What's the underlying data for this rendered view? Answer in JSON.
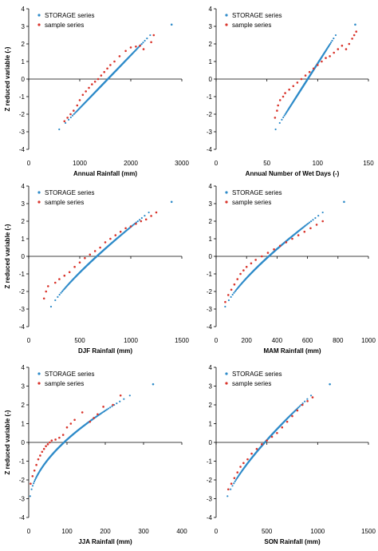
{
  "colors": {
    "storage": "#2e8bc9",
    "sample": "#d9342b"
  },
  "chart_data": [
    {
      "type": "scatter",
      "xlabel": "Annual Rainfall (mm)",
      "ylabel": "Z reduced variable (-)",
      "xlim": [
        0,
        3000
      ],
      "ylim": [
        -4,
        4
      ],
      "xticks": [
        "0",
        "1000",
        "2000",
        "3000"
      ],
      "yticks": [
        "-4",
        "-3",
        "-2",
        "-1",
        "0",
        "1",
        "2",
        "3",
        "4"
      ],
      "legend": [
        "STORAGE series",
        "sample series"
      ],
      "storage": {
        "xmin": 520,
        "xmax": 2800,
        "zmin": -3.1,
        "zmax": 3.1,
        "gamma": 1.0,
        "outlier": [
          2800,
          3.1
        ]
      },
      "sample": [
        [
          700,
          -2.4
        ],
        [
          760,
          -2.2
        ],
        [
          820,
          -2.0
        ],
        [
          880,
          -1.8
        ],
        [
          950,
          -1.5
        ],
        [
          1000,
          -1.2
        ],
        [
          1060,
          -0.9
        ],
        [
          1120,
          -0.7
        ],
        [
          1180,
          -0.5
        ],
        [
          1240,
          -0.3
        ],
        [
          1300,
          -0.15
        ],
        [
          1360,
          0.0
        ],
        [
          1420,
          0.2
        ],
        [
          1480,
          0.4
        ],
        [
          1540,
          0.6
        ],
        [
          1600,
          0.8
        ],
        [
          1680,
          1.0
        ],
        [
          1780,
          1.3
        ],
        [
          1900,
          1.6
        ],
        [
          2000,
          1.8
        ],
        [
          2100,
          1.85
        ],
        [
          2180,
          1.9
        ],
        [
          2250,
          1.7
        ],
        [
          2400,
          2.1
        ],
        [
          2450,
          2.5
        ]
      ]
    },
    {
      "type": "scatter",
      "xlabel": "Annual Number of Wet Days (-)",
      "ylabel": "",
      "xlim": [
        0,
        150
      ],
      "ylim": [
        -4,
        4
      ],
      "xticks": [
        "0",
        "50",
        "100",
        "150"
      ],
      "yticks": [
        "-4",
        "-3",
        "-2",
        "-1",
        "0",
        "1",
        "2",
        "3",
        "4"
      ],
      "legend": [
        "STORAGE series",
        "sample series"
      ],
      "storage": {
        "xmin": 56,
        "xmax": 137,
        "zmin": -3.1,
        "zmax": 3.1,
        "gamma": 1.0,
        "outlier": [
          137,
          3.1
        ]
      },
      "sample": [
        [
          58,
          -2.2
        ],
        [
          60,
          -1.8
        ],
        [
          61,
          -1.5
        ],
        [
          63,
          -1.2
        ],
        [
          66,
          -1.0
        ],
        [
          68,
          -0.8
        ],
        [
          72,
          -0.6
        ],
        [
          76,
          -0.4
        ],
        [
          80,
          -0.2
        ],
        [
          84,
          0.0
        ],
        [
          88,
          0.2
        ],
        [
          92,
          0.4
        ],
        [
          96,
          0.6
        ],
        [
          100,
          0.8
        ],
        [
          104,
          1.0
        ],
        [
          108,
          1.2
        ],
        [
          112,
          1.3
        ],
        [
          116,
          1.5
        ],
        [
          120,
          1.7
        ],
        [
          124,
          1.9
        ],
        [
          128,
          1.7
        ],
        [
          131,
          2.0
        ],
        [
          134,
          2.3
        ],
        [
          136,
          2.5
        ],
        [
          138,
          2.7
        ]
      ]
    },
    {
      "type": "scatter",
      "xlabel": "DJF Rainfall (mm)",
      "ylabel": "Z reduced variable (-)",
      "xlim": [
        0,
        1500
      ],
      "ylim": [
        -4,
        4
      ],
      "xticks": [
        "0",
        "500",
        "1000",
        "1500"
      ],
      "yticks": [
        "-4",
        "-3",
        "-2",
        "-1",
        "0",
        "1",
        "2",
        "3",
        "4"
      ],
      "legend": [
        "STORAGE series",
        "sample series"
      ],
      "storage": {
        "xmin": 200,
        "xmax": 1400,
        "zmin": -3.1,
        "zmax": 3.1,
        "gamma": 0.8,
        "outlier": [
          1400,
          3.1
        ]
      },
      "sample": [
        [
          150,
          -2.4
        ],
        [
          170,
          -2.0
        ],
        [
          190,
          -1.7
        ],
        [
          260,
          -1.5
        ],
        [
          300,
          -1.3
        ],
        [
          350,
          -1.1
        ],
        [
          400,
          -0.9
        ],
        [
          450,
          -0.6
        ],
        [
          500,
          -0.35
        ],
        [
          550,
          -0.1
        ],
        [
          600,
          0.1
        ],
        [
          650,
          0.3
        ],
        [
          700,
          0.5
        ],
        [
          750,
          0.8
        ],
        [
          800,
          1.0
        ],
        [
          850,
          1.2
        ],
        [
          900,
          1.4
        ],
        [
          950,
          1.6
        ],
        [
          1000,
          1.7
        ],
        [
          1050,
          1.85
        ],
        [
          1100,
          2.0
        ],
        [
          1150,
          2.1
        ],
        [
          1200,
          2.3
        ],
        [
          1250,
          2.5
        ]
      ]
    },
    {
      "type": "scatter",
      "xlabel": "MAM Rainfall (mm)",
      "ylabel": "",
      "xlim": [
        0,
        1000
      ],
      "ylim": [
        -4,
        4
      ],
      "xticks": [
        "0",
        "200",
        "400",
        "600",
        "800",
        "1000"
      ],
      "yticks": [
        "-4",
        "-3",
        "-2",
        "-1",
        "0",
        "1",
        "2",
        "3",
        "4"
      ],
      "legend": [
        "STORAGE series",
        "sample series"
      ],
      "storage": {
        "xmin": 50,
        "xmax": 840,
        "zmin": -3.1,
        "zmax": 3.1,
        "gamma": 0.75,
        "outlier": [
          840,
          3.1
        ]
      },
      "sample": [
        [
          60,
          -2.6
        ],
        [
          80,
          -2.2
        ],
        [
          100,
          -1.9
        ],
        [
          120,
          -1.6
        ],
        [
          140,
          -1.3
        ],
        [
          160,
          -1.0
        ],
        [
          180,
          -0.8
        ],
        [
          200,
          -0.6
        ],
        [
          230,
          -0.4
        ],
        [
          260,
          -0.2
        ],
        [
          300,
          0.0
        ],
        [
          340,
          0.2
        ],
        [
          380,
          0.4
        ],
        [
          420,
          0.6
        ],
        [
          460,
          0.8
        ],
        [
          500,
          1.0
        ],
        [
          540,
          1.2
        ],
        [
          580,
          1.4
        ],
        [
          620,
          1.6
        ],
        [
          660,
          1.8
        ],
        [
          700,
          2.0
        ]
      ]
    },
    {
      "type": "scatter",
      "xlabel": "JJA Rainfall (mm)",
      "ylabel": "Z reduced variable (-)",
      "xlim": [
        0,
        400
      ],
      "ylim": [
        -4,
        4
      ],
      "xticks": [
        "0",
        "100",
        "200",
        "300",
        "400"
      ],
      "yticks": [
        "-4",
        "-3",
        "-2",
        "-1",
        "0",
        "1",
        "2",
        "3",
        "4"
      ],
      "legend": [
        "STORAGE series",
        "sample series"
      ],
      "storage": {
        "xmin": 3,
        "xmax": 325,
        "zmin": -3.1,
        "zmax": 3.1,
        "gamma": 0.55,
        "outlier": [
          325,
          3.1
        ]
      },
      "sample": [
        [
          5,
          -2.2
        ],
        [
          10,
          -1.8
        ],
        [
          15,
          -1.5
        ],
        [
          20,
          -1.2
        ],
        [
          25,
          -0.9
        ],
        [
          30,
          -0.7
        ],
        [
          35,
          -0.5
        ],
        [
          40,
          -0.35
        ],
        [
          45,
          -0.2
        ],
        [
          50,
          -0.1
        ],
        [
          55,
          0.0
        ],
        [
          60,
          0.1
        ],
        [
          70,
          0.15
        ],
        [
          80,
          0.25
        ],
        [
          90,
          0.4
        ],
        [
          100,
          0.8
        ],
        [
          110,
          1.0
        ],
        [
          120,
          1.2
        ],
        [
          140,
          1.6
        ],
        [
          160,
          1.1
        ],
        [
          170,
          1.3
        ],
        [
          180,
          1.5
        ],
        [
          195,
          1.9
        ],
        [
          220,
          2.0
        ],
        [
          240,
          2.5
        ]
      ]
    },
    {
      "type": "scatter",
      "xlabel": "SON Rainfall (mm)",
      "ylabel": "",
      "xlim": [
        0,
        1500
      ],
      "ylim": [
        -4,
        4
      ],
      "xticks": [
        "0",
        "500",
        "1000",
        "1500"
      ],
      "yticks": [
        "-4",
        "-3",
        "-2",
        "-1",
        "0",
        "1",
        "2",
        "3",
        "4"
      ],
      "legend": [
        "STORAGE series",
        "sample series"
      ],
      "storage": {
        "xmin": 100,
        "xmax": 1120,
        "zmin": -3.1,
        "zmax": 3.1,
        "gamma": 0.75,
        "outlier": [
          1120,
          3.1
        ]
      },
      "sample": [
        [
          120,
          -2.5
        ],
        [
          150,
          -2.2
        ],
        [
          180,
          -1.9
        ],
        [
          210,
          -1.6
        ],
        [
          240,
          -1.3
        ],
        [
          270,
          -1.1
        ],
        [
          310,
          -0.9
        ],
        [
          350,
          -0.6
        ],
        [
          400,
          -0.35
        ],
        [
          450,
          -0.1
        ],
        [
          500,
          0.1
        ],
        [
          550,
          0.3
        ],
        [
          600,
          0.5
        ],
        [
          650,
          0.8
        ],
        [
          700,
          1.1
        ],
        [
          750,
          1.4
        ],
        [
          800,
          1.7
        ],
        [
          850,
          2.0
        ],
        [
          900,
          2.2
        ],
        [
          950,
          2.4
        ]
      ]
    }
  ]
}
